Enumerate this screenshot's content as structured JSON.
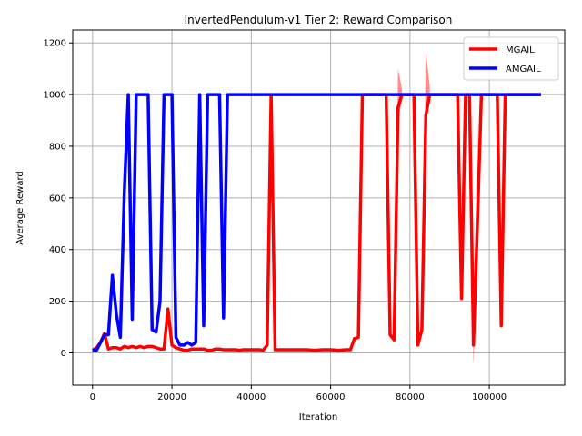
{
  "chart_data": {
    "type": "line",
    "title": "InvertedPendulum-v1 Tier 2: Reward Comparison",
    "xlabel": "Iteration",
    "ylabel": "Average Reward",
    "xlim": [
      -5000,
      119000
    ],
    "ylim": [
      -125,
      1250
    ],
    "xticks": [
      0,
      20000,
      40000,
      60000,
      80000,
      100000
    ],
    "yticks": [
      0,
      200,
      400,
      600,
      800,
      1000,
      1200
    ],
    "grid": true,
    "legend_position": "top-right",
    "series": [
      {
        "name": "MGAIL",
        "color": "#ff0000",
        "x": [
          0,
          1000,
          2000,
          3000,
          4000,
          5000,
          6000,
          7000,
          8000,
          9000,
          10000,
          11000,
          12000,
          13000,
          14000,
          15000,
          16000,
          17000,
          18000,
          19000,
          20000,
          21000,
          22000,
          23000,
          24000,
          25000,
          26000,
          27000,
          28000,
          29000,
          30000,
          31000,
          32000,
          33000,
          34000,
          35000,
          36000,
          37000,
          38000,
          39000,
          40000,
          41000,
          42000,
          43000,
          44000,
          45000,
          46000,
          47000,
          48000,
          50000,
          52000,
          54000,
          56000,
          58000,
          60000,
          62000,
          64000,
          65000,
          66000,
          67000,
          68000,
          69000,
          70000,
          71000,
          72000,
          73000,
          74000,
          75000,
          76000,
          77000,
          78000,
          79000,
          80000,
          81000,
          82000,
          83000,
          84000,
          85000,
          86000,
          87000,
          88000,
          89000,
          90000,
          91000,
          92000,
          93000,
          94000,
          95000,
          96000,
          97000,
          98000,
          99000,
          100000,
          101000,
          102000,
          103000,
          104000,
          105000,
          106000,
          107000,
          108000,
          109000,
          110000,
          111000,
          112000,
          113000
        ],
        "y": [
          10,
          20,
          40,
          75,
          15,
          20,
          20,
          15,
          25,
          20,
          25,
          20,
          25,
          20,
          25,
          25,
          20,
          15,
          15,
          170,
          30,
          20,
          15,
          10,
          10,
          15,
          15,
          15,
          15,
          10,
          10,
          15,
          15,
          12,
          12,
          12,
          12,
          10,
          12,
          12,
          12,
          12,
          12,
          10,
          30,
          1000,
          12,
          12,
          12,
          12,
          12,
          12,
          10,
          12,
          12,
          10,
          12,
          12,
          55,
          60,
          1000,
          1000,
          1000,
          1000,
          1000,
          1000,
          1000,
          70,
          50,
          950,
          1000,
          1000,
          1000,
          1000,
          30,
          90,
          920,
          1000,
          1000,
          1000,
          1000,
          1000,
          1000,
          1000,
          1000,
          210,
          1000,
          1000,
          30,
          500,
          1000,
          1000,
          1000,
          1000,
          1000,
          105,
          1000,
          1000,
          1000,
          1000,
          1000,
          1000,
          1000,
          1000,
          1000,
          1000
        ]
      },
      {
        "name": "AMGAIL",
        "color": "#0000ff",
        "x": [
          0,
          1000,
          2000,
          3000,
          4000,
          5000,
          6000,
          7000,
          8000,
          9000,
          10000,
          11000,
          12000,
          13000,
          14000,
          15000,
          16000,
          17000,
          18000,
          19000,
          20000,
          21000,
          22000,
          23000,
          24000,
          25000,
          26000,
          27000,
          28000,
          29000,
          30000,
          31000,
          32000,
          33000,
          34000,
          35000,
          40000,
          50000,
          60000,
          70000,
          80000,
          90000,
          100000,
          110000,
          113000
        ],
        "y": [
          10,
          10,
          40,
          70,
          70,
          300,
          150,
          60,
          620,
          1000,
          130,
          1000,
          1000,
          1000,
          1000,
          90,
          80,
          200,
          1000,
          1000,
          1000,
          60,
          30,
          30,
          40,
          30,
          40,
          1000,
          105,
          1000,
          1000,
          1000,
          1000,
          135,
          1000,
          1000,
          1000,
          1000,
          1000,
          1000,
          1000,
          1000,
          1000,
          1000,
          1000
        ]
      }
    ],
    "bands": [
      {
        "series": "MGAIL",
        "x": [
          76000,
          77000,
          78000
        ],
        "y_low": [
          50,
          900,
          980
        ],
        "y_high": [
          50,
          1100,
          1020
        ]
      },
      {
        "series": "MGAIL",
        "x": [
          83000,
          84000,
          85000
        ],
        "y_low": [
          90,
          880,
          980
        ],
        "y_high": [
          90,
          1170,
          1030
        ]
      },
      {
        "series": "MGAIL",
        "x": [
          95000,
          96000,
          97000
        ],
        "y_low": [
          1000,
          -50,
          400
        ],
        "y_high": [
          1000,
          60,
          900
        ]
      }
    ]
  }
}
